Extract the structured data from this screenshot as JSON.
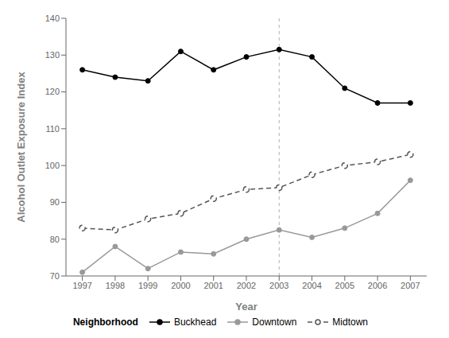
{
  "chart_data": {
    "type": "line",
    "x": [
      1997,
      1998,
      1999,
      2000,
      2001,
      2002,
      2003,
      2004,
      2005,
      2006,
      2007
    ],
    "series": [
      {
        "name": "Buckhead",
        "color": "#000000",
        "values": [
          126,
          124,
          123,
          131,
          126,
          129.5,
          131.5,
          129.5,
          121,
          117,
          117
        ],
        "marker": "circle",
        "line_style": "solid"
      },
      {
        "name": "Downtown",
        "color": "#999999",
        "values": [
          71,
          78,
          72,
          76.5,
          76,
          80,
          82.5,
          80.5,
          83,
          87,
          96
        ],
        "marker": "circle",
        "line_style": "solid"
      },
      {
        "name": "Midtown",
        "color": "#555555",
        "values": [
          83,
          82.5,
          85.5,
          87,
          91,
          93.5,
          94,
          97.5,
          100,
          101,
          103
        ],
        "marker": "open_circle",
        "line_style": "dashed"
      }
    ],
    "xlabel": "Year",
    "ylabel": "Alcohol Outlet Exposure Index",
    "xlim": [
      1996.5,
      2007.5
    ],
    "xticks": [
      1997,
      1998,
      1999,
      2000,
      2001,
      2002,
      2003,
      2004,
      2005,
      2006,
      2007
    ],
    "ylim": [
      70,
      140
    ],
    "yticks": [
      70,
      80,
      90,
      100,
      110,
      120,
      130,
      140
    ],
    "grid": false,
    "legend": "bottom",
    "legend_title": "Neighborhood",
    "vline_x": 2003
  }
}
